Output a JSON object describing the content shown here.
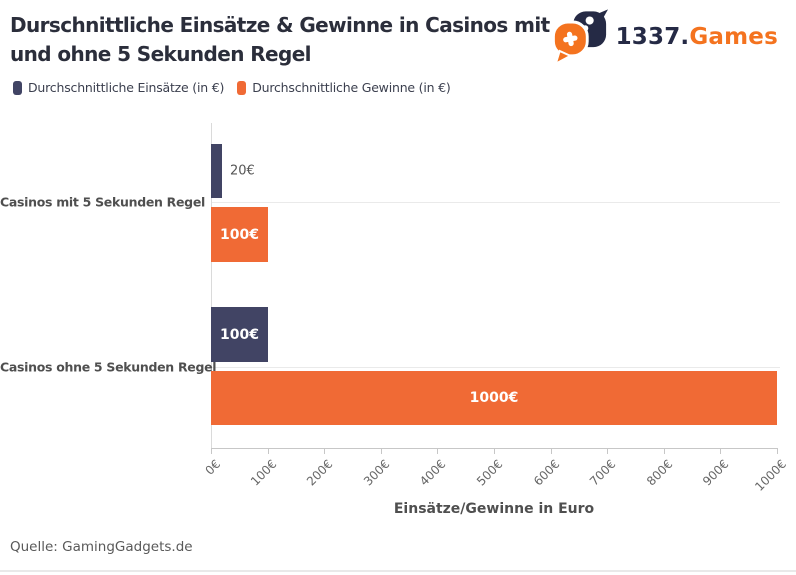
{
  "header": {
    "title_lines": [
      "Durschnittliche Einsätze & Gewinne in Casinos mit",
      "und ohne 5 Sekunden Regel"
    ],
    "logo": {
      "text_dark": "1337.",
      "text_accent": "Games"
    }
  },
  "colors": {
    "navy": "#414464",
    "orange": "#f06a35",
    "logo_navy": "#252a45",
    "logo_orange": "#f4731f",
    "title_text": "#2b2e3b"
  },
  "legend": [
    {
      "label": "Durchschnittliche Einsätze (in €)",
      "color": "#414464"
    },
    {
      "label": "Durchschnittliche Gewinne (in €)",
      "color": "#f06a35"
    }
  ],
  "chart_data": {
    "type": "bar",
    "orientation": "horizontal",
    "categories": [
      "Casinos mit 5 Sekunden Regel",
      "Casinos ohne 5 Sekunden Regel"
    ],
    "series": [
      {
        "name": "Durchschnittliche Einsätze (in €)",
        "color": "#414464",
        "values": [
          20,
          100
        ]
      },
      {
        "name": "Durchschnittliche Gewinne (in €)",
        "color": "#f06a35",
        "values": [
          100,
          1000
        ]
      }
    ],
    "value_labels": [
      [
        "20€",
        "100€"
      ],
      [
        "100€",
        "1000€"
      ]
    ],
    "xlabel": "Einsätze/Gewinne in Euro",
    "x_axis": {
      "unit": "€",
      "max": 1000,
      "tick_values": [
        0,
        100,
        200,
        300,
        400,
        500,
        600,
        700,
        800,
        900,
        1000
      ],
      "ticks": [
        "0€",
        "100€",
        "200€",
        "300€",
        "400€",
        "500€",
        "600€",
        "700€",
        "800€",
        "900€",
        "1000€"
      ]
    },
    "xlim": [
      0,
      1000
    ],
    "grid": "category-center-lines",
    "legend_position": "top-left"
  },
  "footer": {
    "source": "Quelle: GamingGadgets.de"
  }
}
